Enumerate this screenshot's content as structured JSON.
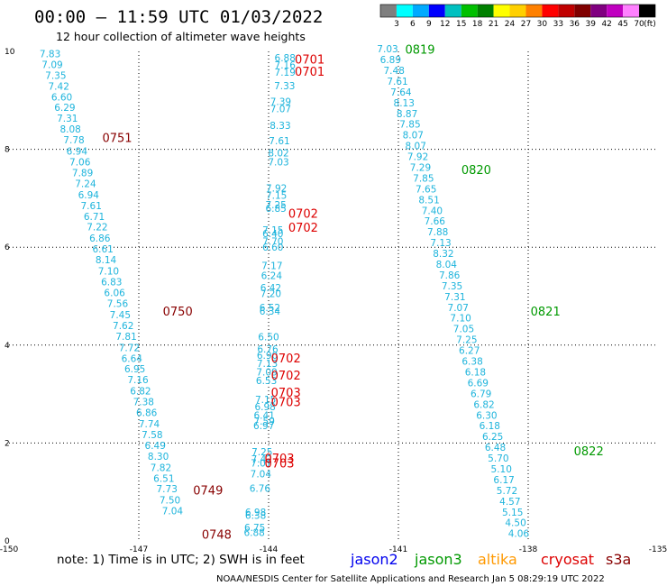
{
  "title": "00:00 – 11:59 UTC 01/03/2022",
  "subtitle": "12 hour collection of altimeter wave heights",
  "note": "note: 1) Time is in UTC; 2) SWH is in feet",
  "credit": "NOAA/NESDIS Center for Satellite Applications and Research   Jan  5 08:29:19 UTC 2022",
  "colorbar": {
    "labels": [
      "3",
      "6",
      "9",
      "12",
      "15",
      "18",
      "21",
      "24",
      "27",
      "30",
      "33",
      "36",
      "39",
      "42",
      "45",
      "70"
    ],
    "unit": "(ft)",
    "colors": [
      "#7f7f7f",
      "#00ffff",
      "#00aaff",
      "#0000ff",
      "#00c0c0",
      "#00c000",
      "#008000",
      "#ffff00",
      "#ffd000",
      "#ff8000",
      "#ff0000",
      "#c00000",
      "#800000",
      "#800080",
      "#c000c0",
      "#ff80ff",
      "#000000"
    ]
  },
  "satellites": [
    {
      "name": "jason2",
      "color": "#0000ee"
    },
    {
      "name": "jason3",
      "color": "#009900"
    },
    {
      "name": "altika",
      "color": "#ff9900"
    },
    {
      "name": "cryosat",
      "color": "#dd0000"
    },
    {
      "name": "s3a",
      "color": "#880000"
    }
  ],
  "chart_data": {
    "type": "scatter",
    "title": "00:00 – 11:59 UTC 01/03/2022",
    "xlim": [
      -150,
      -135
    ],
    "ylim": [
      0,
      10
    ],
    "xticks": [
      "-150",
      "-147",
      "-144",
      "-141",
      "-138",
      "-135"
    ],
    "yticks": [
      "0",
      "2",
      "4",
      "6",
      "8",
      "10"
    ],
    "grid": true,
    "value_color": "#1eb4dc",
    "series": [
      {
        "name": "s3a",
        "color": "#880000",
        "time_labels": [
          {
            "x": -147.5,
            "y": 8.15,
            "text": "0751"
          },
          {
            "x": -146.1,
            "y": 4.6,
            "text": "0750"
          },
          {
            "x": -145.4,
            "y": 0.95,
            "text": "0749"
          },
          {
            "x": -145.2,
            "y": 0.05,
            "text": "0748"
          }
        ],
        "points": [
          {
            "x": -149.05,
            "y": 9.88,
            "v": "7.83"
          },
          {
            "x": -149.0,
            "y": 9.66,
            "v": "7.09"
          },
          {
            "x": -148.92,
            "y": 9.44,
            "v": "7.35"
          },
          {
            "x": -148.85,
            "y": 9.22,
            "v": "7.42"
          },
          {
            "x": -148.78,
            "y": 9.0,
            "v": "6.60"
          },
          {
            "x": -148.71,
            "y": 8.78,
            "v": "6.29"
          },
          {
            "x": -148.65,
            "y": 8.56,
            "v": "7.31"
          },
          {
            "x": -148.58,
            "y": 8.34,
            "v": "8.08"
          },
          {
            "x": -148.5,
            "y": 8.12,
            "v": "7.78"
          },
          {
            "x": -148.43,
            "y": 7.89,
            "v": "6.94"
          },
          {
            "x": -148.36,
            "y": 7.67,
            "v": "7.06"
          },
          {
            "x": -148.3,
            "y": 7.45,
            "v": "7.89"
          },
          {
            "x": -148.23,
            "y": 7.23,
            "v": "7.24"
          },
          {
            "x": -148.16,
            "y": 7.0,
            "v": "6.94"
          },
          {
            "x": -148.1,
            "y": 6.78,
            "v": "7.61"
          },
          {
            "x": -148.03,
            "y": 6.56,
            "v": "6.71"
          },
          {
            "x": -147.96,
            "y": 6.34,
            "v": "7.22"
          },
          {
            "x": -147.9,
            "y": 6.11,
            "v": "6.86"
          },
          {
            "x": -147.83,
            "y": 5.89,
            "v": "6.61"
          },
          {
            "x": -147.76,
            "y": 5.67,
            "v": "8.14"
          },
          {
            "x": -147.7,
            "y": 5.44,
            "v": "7.10"
          },
          {
            "x": -147.63,
            "y": 5.22,
            "v": "6.83"
          },
          {
            "x": -147.56,
            "y": 5.0,
            "v": "6.06"
          },
          {
            "x": -147.49,
            "y": 4.78,
            "v": "7.56"
          },
          {
            "x": -147.43,
            "y": 4.55,
            "v": "7.45"
          },
          {
            "x": -147.36,
            "y": 4.33,
            "v": "7.62"
          },
          {
            "x": -147.29,
            "y": 4.11,
            "v": "7.81"
          },
          {
            "x": -147.22,
            "y": 3.88,
            "v": "7.72"
          },
          {
            "x": -147.16,
            "y": 3.66,
            "v": "6.64"
          },
          {
            "x": -147.09,
            "y": 3.44,
            "v": "6.95"
          },
          {
            "x": -147.02,
            "y": 3.22,
            "v": "7.16"
          },
          {
            "x": -146.96,
            "y": 2.99,
            "v": "6.82"
          },
          {
            "x": -146.89,
            "y": 2.77,
            "v": "7.38"
          },
          {
            "x": -146.82,
            "y": 2.55,
            "v": "6.86"
          },
          {
            "x": -146.76,
            "y": 2.32,
            "v": "7.74"
          },
          {
            "x": -146.69,
            "y": 2.1,
            "v": "7.58"
          },
          {
            "x": -146.62,
            "y": 1.88,
            "v": "6.49"
          },
          {
            "x": -146.55,
            "y": 1.66,
            "v": "8.30"
          },
          {
            "x": -146.49,
            "y": 1.43,
            "v": "7.82"
          },
          {
            "x": -146.42,
            "y": 1.21,
            "v": "6.51"
          },
          {
            "x": -146.35,
            "y": 0.99,
            "v": "7.73"
          },
          {
            "x": -146.28,
            "y": 0.76,
            "v": "7.50"
          },
          {
            "x": -146.22,
            "y": 0.54,
            "v": "7.04"
          }
        ]
      },
      {
        "name": "cryosat",
        "color": "#dd0000",
        "time_labels": [
          {
            "x": -143.05,
            "y": 9.75,
            "text": "0701"
          },
          {
            "x": -143.05,
            "y": 9.5,
            "text": "0701"
          },
          {
            "x": -143.2,
            "y": 6.6,
            "text": "0702"
          },
          {
            "x": -143.2,
            "y": 6.32,
            "text": "0702"
          },
          {
            "x": -143.6,
            "y": 3.65,
            "text": "0702"
          },
          {
            "x": -143.6,
            "y": 3.3,
            "text": "0702"
          },
          {
            "x": -143.6,
            "y": 2.95,
            "text": "0703"
          },
          {
            "x": -143.6,
            "y": 2.75,
            "text": "0703"
          },
          {
            "x": -143.75,
            "y": 1.6,
            "text": "0703"
          },
          {
            "x": -143.75,
            "y": 1.5,
            "text": "0703"
          }
        ],
        "points": [
          {
            "x": -143.62,
            "y": 9.8,
            "v": "6.88"
          },
          {
            "x": -143.62,
            "y": 9.65,
            "v": "7.16"
          },
          {
            "x": -143.62,
            "y": 9.5,
            "v": "7.19"
          },
          {
            "x": -143.63,
            "y": 9.23,
            "v": "7.33"
          },
          {
            "x": -143.72,
            "y": 8.9,
            "v": "7.39"
          },
          {
            "x": -143.72,
            "y": 8.76,
            "v": "7.07"
          },
          {
            "x": -143.73,
            "y": 8.42,
            "v": "8.33"
          },
          {
            "x": -143.75,
            "y": 8.1,
            "v": "7.61"
          },
          {
            "x": -143.77,
            "y": 7.85,
            "v": "8.02"
          },
          {
            "x": -143.77,
            "y": 7.67,
            "v": "7.03"
          },
          {
            "x": -143.82,
            "y": 7.14,
            "v": "7.92"
          },
          {
            "x": -143.82,
            "y": 6.99,
            "v": "7.15"
          },
          {
            "x": -143.83,
            "y": 6.8,
            "v": "7.25"
          },
          {
            "x": -143.83,
            "y": 6.72,
            "v": "6.85"
          },
          {
            "x": -143.9,
            "y": 6.28,
            "v": "7.15"
          },
          {
            "x": -143.9,
            "y": 6.21,
            "v": "6.40"
          },
          {
            "x": -143.9,
            "y": 6.05,
            "v": "7.70"
          },
          {
            "x": -143.9,
            "y": 5.93,
            "v": "6.60"
          },
          {
            "x": -143.92,
            "y": 5.55,
            "v": "7.17"
          },
          {
            "x": -143.93,
            "y": 5.35,
            "v": "6.24"
          },
          {
            "x": -143.95,
            "y": 5.1,
            "v": "6.42"
          },
          {
            "x": -143.95,
            "y": 4.98,
            "v": "7.20"
          },
          {
            "x": -143.97,
            "y": 4.7,
            "v": "6.52"
          },
          {
            "x": -143.97,
            "y": 4.62,
            "v": "6.34"
          },
          {
            "x": -144.0,
            "y": 4.1,
            "v": "6.50"
          },
          {
            "x": -144.02,
            "y": 3.85,
            "v": "6.76"
          },
          {
            "x": -144.03,
            "y": 3.72,
            "v": "6.90"
          },
          {
            "x": -144.03,
            "y": 3.55,
            "v": "7.13"
          },
          {
            "x": -144.04,
            "y": 3.38,
            "v": "7.09"
          },
          {
            "x": -144.05,
            "y": 3.2,
            "v": "6.53"
          },
          {
            "x": -144.07,
            "y": 2.82,
            "v": "7.15"
          },
          {
            "x": -144.08,
            "y": 2.67,
            "v": "6.98"
          },
          {
            "x": -144.1,
            "y": 2.5,
            "v": "6.41"
          },
          {
            "x": -144.1,
            "y": 2.38,
            "v": "7.59"
          },
          {
            "x": -144.11,
            "y": 2.28,
            "v": "6.97"
          },
          {
            "x": -144.15,
            "y": 1.75,
            "v": "7.25"
          },
          {
            "x": -144.16,
            "y": 1.6,
            "v": "7.42"
          },
          {
            "x": -144.17,
            "y": 1.52,
            "v": "7.07"
          },
          {
            "x": -144.18,
            "y": 1.3,
            "v": "7.04"
          },
          {
            "x": -144.2,
            "y": 1.0,
            "v": "6.76"
          },
          {
            "x": -144.3,
            "y": 0.52,
            "v": "6.98"
          },
          {
            "x": -144.3,
            "y": 0.45,
            "v": "6.38"
          },
          {
            "x": -144.32,
            "y": 0.2,
            "v": "6.75"
          },
          {
            "x": -144.33,
            "y": 0.1,
            "v": "6.88"
          }
        ]
      },
      {
        "name": "jason3",
        "color": "#009900",
        "time_labels": [
          {
            "x": -140.5,
            "y": 9.95,
            "text": "0819"
          },
          {
            "x": -139.2,
            "y": 7.5,
            "text": "0820"
          },
          {
            "x": -137.6,
            "y": 4.6,
            "text": "0821"
          },
          {
            "x": -136.6,
            "y": 1.75,
            "text": "0822"
          }
        ],
        "points": [
          {
            "x": -141.25,
            "y": 9.98,
            "v": "7.03"
          },
          {
            "x": -141.18,
            "y": 9.76,
            "v": "6.89"
          },
          {
            "x": -141.1,
            "y": 9.54,
            "v": "7.48"
          },
          {
            "x": -141.02,
            "y": 9.32,
            "v": "7.61"
          },
          {
            "x": -140.94,
            "y": 9.1,
            "v": "7.64"
          },
          {
            "x": -140.87,
            "y": 8.88,
            "v": "8.13"
          },
          {
            "x": -140.8,
            "y": 8.66,
            "v": "8.87"
          },
          {
            "x": -140.73,
            "y": 8.44,
            "v": "7.85"
          },
          {
            "x": -140.66,
            "y": 8.22,
            "v": "8.07"
          },
          {
            "x": -140.6,
            "y": 8.0,
            "v": "8.07"
          },
          {
            "x": -140.55,
            "y": 7.78,
            "v": "7.92"
          },
          {
            "x": -140.49,
            "y": 7.56,
            "v": "7.29"
          },
          {
            "x": -140.42,
            "y": 7.34,
            "v": "7.85"
          },
          {
            "x": -140.36,
            "y": 7.12,
            "v": "7.65"
          },
          {
            "x": -140.29,
            "y": 6.9,
            "v": "8.51"
          },
          {
            "x": -140.22,
            "y": 6.68,
            "v": "7.40"
          },
          {
            "x": -140.16,
            "y": 6.46,
            "v": "7.66"
          },
          {
            "x": -140.09,
            "y": 6.24,
            "v": "7.88"
          },
          {
            "x": -140.02,
            "y": 6.02,
            "v": "7.13"
          },
          {
            "x": -139.96,
            "y": 5.8,
            "v": "8.32"
          },
          {
            "x": -139.89,
            "y": 5.58,
            "v": "8.04"
          },
          {
            "x": -139.82,
            "y": 5.36,
            "v": "7.86"
          },
          {
            "x": -139.76,
            "y": 5.14,
            "v": "7.35"
          },
          {
            "x": -139.69,
            "y": 4.92,
            "v": "7.31"
          },
          {
            "x": -139.62,
            "y": 4.7,
            "v": "7.07"
          },
          {
            "x": -139.56,
            "y": 4.48,
            "v": "7.10"
          },
          {
            "x": -139.49,
            "y": 4.26,
            "v": "7.05"
          },
          {
            "x": -139.42,
            "y": 4.04,
            "v": "7.25"
          },
          {
            "x": -139.36,
            "y": 3.82,
            "v": "6.27"
          },
          {
            "x": -139.29,
            "y": 3.6,
            "v": "6.38"
          },
          {
            "x": -139.22,
            "y": 3.38,
            "v": "6.18"
          },
          {
            "x": -139.16,
            "y": 3.16,
            "v": "6.69"
          },
          {
            "x": -139.09,
            "y": 2.94,
            "v": "6.79"
          },
          {
            "x": -139.02,
            "y": 2.72,
            "v": "6.82"
          },
          {
            "x": -138.96,
            "y": 2.5,
            "v": "6.30"
          },
          {
            "x": -138.89,
            "y": 2.28,
            "v": "6.18"
          },
          {
            "x": -138.82,
            "y": 2.06,
            "v": "6.25"
          },
          {
            "x": -138.76,
            "y": 1.84,
            "v": "6.48"
          },
          {
            "x": -138.69,
            "y": 1.62,
            "v": "5.70"
          },
          {
            "x": -138.62,
            "y": 1.4,
            "v": "5.10"
          },
          {
            "x": -138.56,
            "y": 1.18,
            "v": "6.17"
          },
          {
            "x": -138.49,
            "y": 0.96,
            "v": "5.72"
          },
          {
            "x": -138.42,
            "y": 0.74,
            "v": "4.57"
          },
          {
            "x": -138.36,
            "y": 0.52,
            "v": "5.15"
          },
          {
            "x": -138.29,
            "y": 0.3,
            "v": "4.50"
          },
          {
            "x": -138.22,
            "y": 0.08,
            "v": "4.06"
          }
        ]
      }
    ]
  }
}
